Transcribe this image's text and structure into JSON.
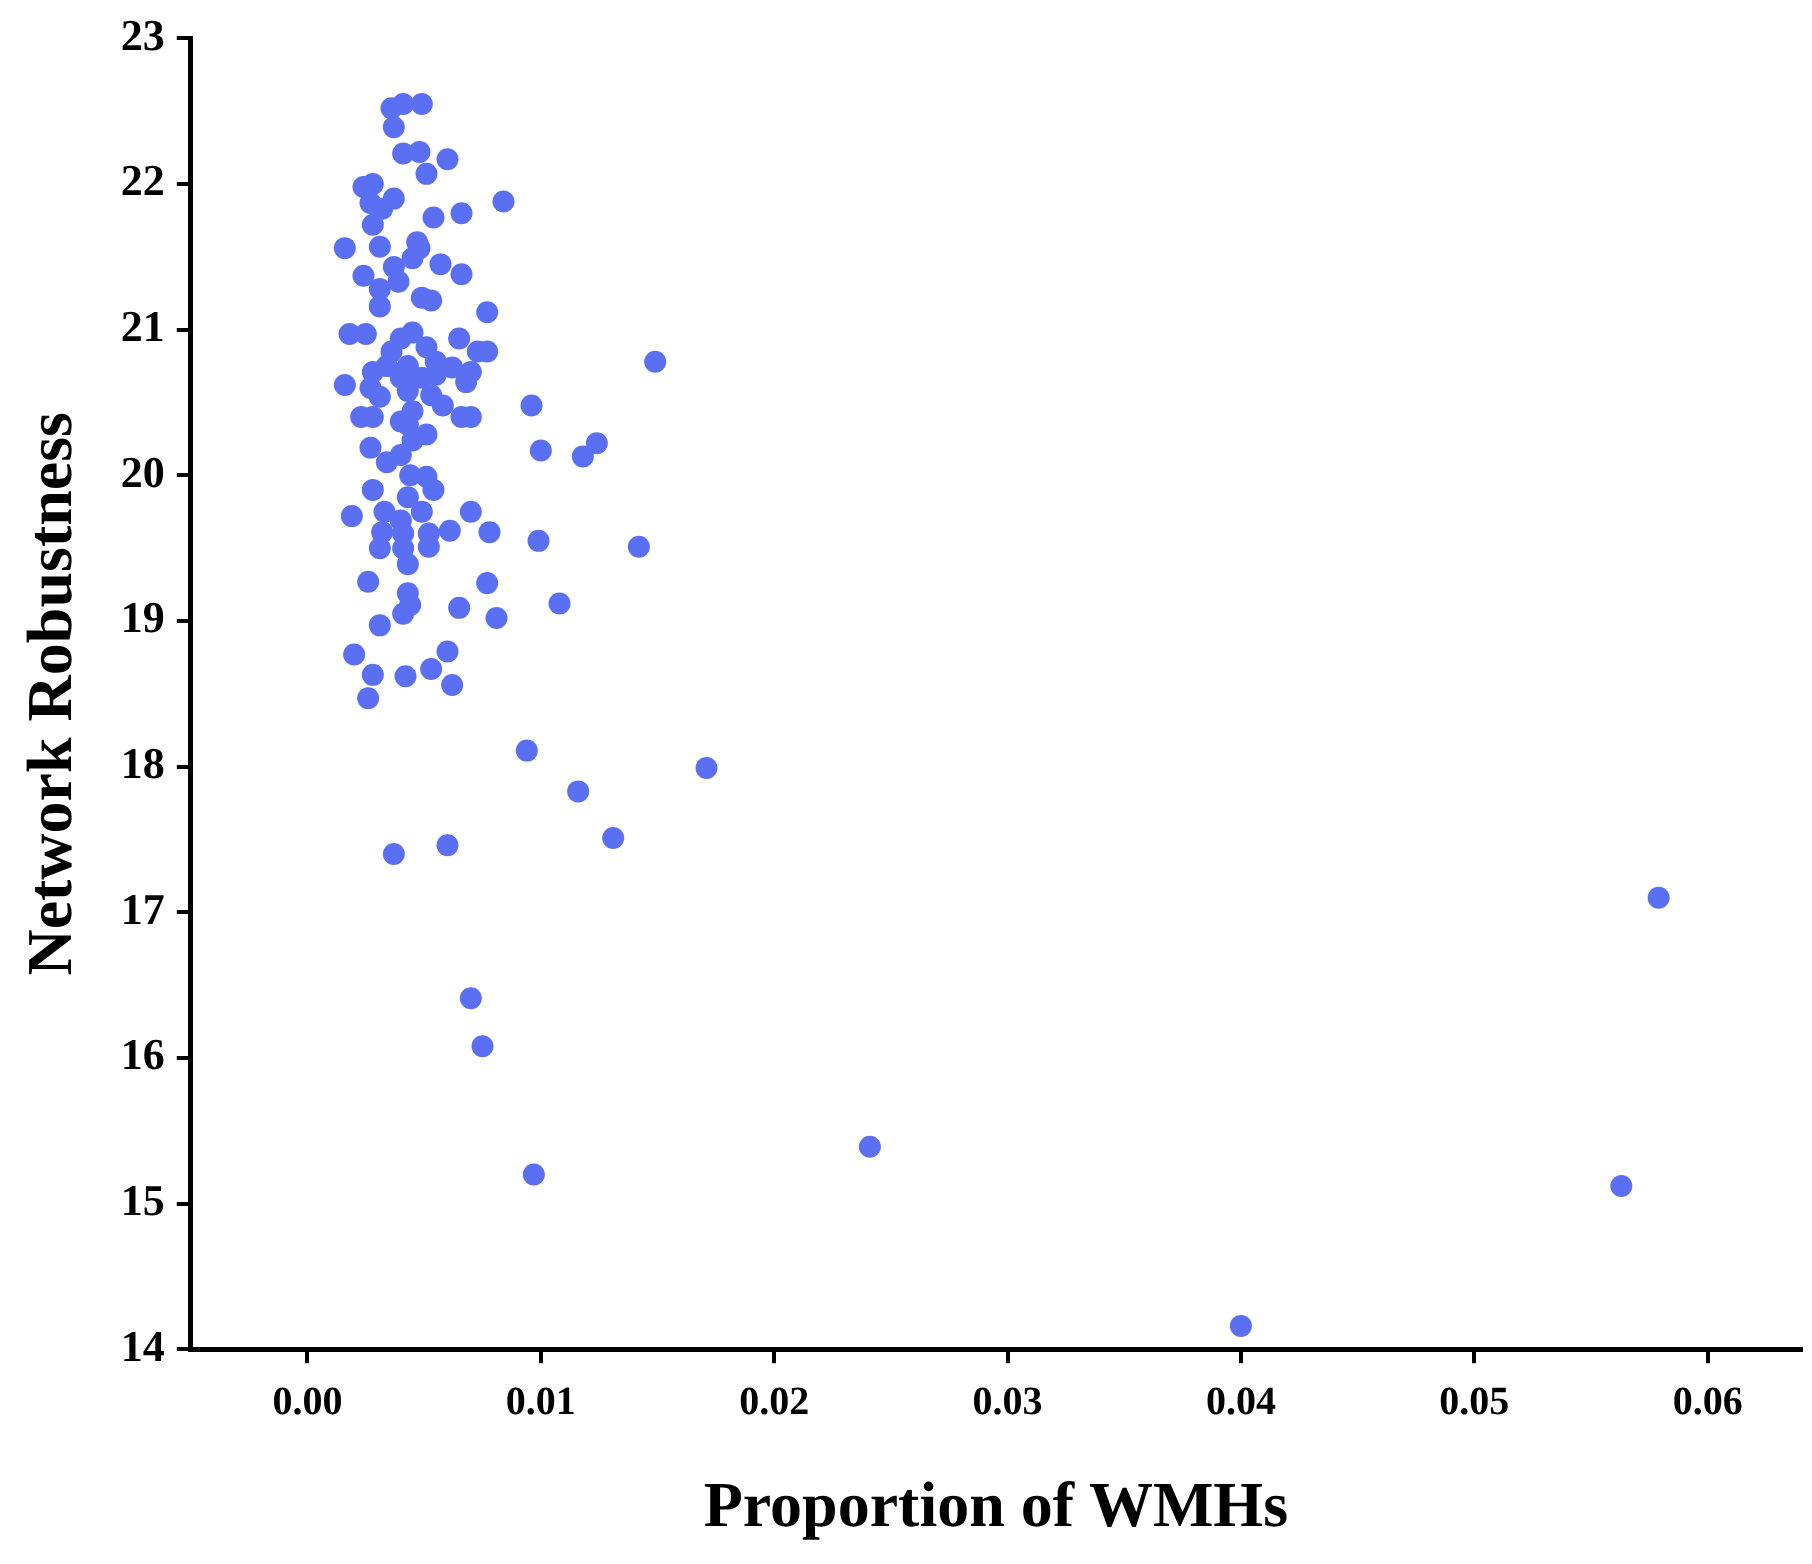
{
  "chart_data": {
    "type": "scatter",
    "xlabel": "Proportion of WMHs",
    "ylabel": "Network Robustness",
    "xlim": [
      -0.005,
      0.064
    ],
    "ylim": [
      14,
      23
    ],
    "xticks": [
      {
        "value": 0,
        "label": "0.00"
      },
      {
        "value": 0.01,
        "label": "0.01"
      },
      {
        "value": 0.02,
        "label": "0.02"
      },
      {
        "value": 0.03,
        "label": "0.03"
      },
      {
        "value": 0.04,
        "label": "0.04"
      },
      {
        "value": 0.05,
        "label": "0.05"
      },
      {
        "value": 0.06,
        "label": "0.06"
      }
    ],
    "yticks": [
      14,
      15,
      16,
      17,
      18,
      19,
      20,
      21,
      22,
      23
    ],
    "grid": false,
    "legend": false,
    "marker": "circle",
    "series": [
      {
        "color": "#5b6ff2",
        "x": [
          0.0097,
          0.0241,
          0.04,
          0.0563,
          0.0579,
          0.0171,
          0.0131,
          0.0116,
          0.0094,
          0.0037,
          0.006,
          0.007,
          0.0075,
          0.0149,
          0.0142,
          0.0124,
          0.0118,
          0.01,
          0.0096,
          0.0099,
          0.0108,
          0.0084,
          0.0036,
          0.0041,
          0.0049,
          0.0037,
          0.0041,
          0.0048,
          0.006,
          0.0051,
          0.0024,
          0.0028,
          0.0037,
          0.0027,
          0.0032,
          0.0054,
          0.0066,
          0.0028,
          0.0016,
          0.0031,
          0.0047,
          0.0048,
          0.0024,
          0.0037,
          0.0045,
          0.0057,
          0.0066,
          0.0039,
          0.0031,
          0.0031,
          0.0049,
          0.0053,
          0.0077,
          0.0018,
          0.0025,
          0.0065,
          0.004,
          0.0045,
          0.0073,
          0.0077,
          0.0036,
          0.0051,
          0.0034,
          0.0043,
          0.0055,
          0.007,
          0.0062,
          0.0028,
          0.004,
          0.0049,
          0.0016,
          0.0027,
          0.0068,
          0.0055,
          0.0043,
          0.0053,
          0.0031,
          0.0023,
          0.0028,
          0.0045,
          0.0058,
          0.0066,
          0.007,
          0.004,
          0.0043,
          0.0051,
          0.0027,
          0.0045,
          0.0034,
          0.004,
          0.0028,
          0.0043,
          0.0044,
          0.0051,
          0.0054,
          0.0019,
          0.0033,
          0.004,
          0.0049,
          0.007,
          0.0032,
          0.0041,
          0.0052,
          0.0061,
          0.0078,
          0.0031,
          0.0041,
          0.0052,
          0.0043,
          0.0026,
          0.0077,
          0.0043,
          0.0044,
          0.0041,
          0.0065,
          0.0081,
          0.0031,
          0.002,
          0.006,
          0.0028,
          0.0042,
          0.0053,
          0.0062,
          0.0026
        ],
        "values": [
          15.2,
          15.39,
          14.16,
          15.12,
          17.1,
          17.99,
          17.51,
          17.83,
          18.11,
          17.4,
          17.46,
          16.41,
          16.08,
          20.78,
          19.51,
          20.22,
          20.13,
          20.17,
          20.48,
          19.55,
          19.12,
          21.88,
          22.52,
          22.55,
          22.55,
          22.39,
          22.21,
          22.22,
          22.17,
          22.07,
          21.98,
          22.0,
          21.9,
          21.87,
          21.83,
          21.77,
          21.8,
          21.72,
          21.56,
          21.57,
          21.6,
          21.56,
          21.37,
          21.43,
          21.49,
          21.45,
          21.38,
          21.33,
          21.28,
          21.16,
          21.22,
          21.2,
          21.12,
          20.97,
          20.97,
          20.94,
          20.94,
          20.98,
          20.85,
          20.85,
          20.85,
          20.88,
          20.75,
          20.75,
          20.78,
          20.71,
          20.74,
          20.71,
          20.67,
          20.67,
          20.62,
          20.6,
          20.64,
          20.69,
          20.58,
          20.55,
          20.54,
          20.4,
          20.4,
          20.44,
          20.48,
          20.4,
          20.4,
          20.37,
          20.35,
          20.28,
          20.19,
          20.24,
          20.09,
          20.14,
          19.9,
          19.85,
          20.0,
          19.99,
          19.9,
          19.72,
          19.75,
          19.69,
          19.75,
          19.75,
          19.61,
          19.6,
          19.6,
          19.62,
          19.61,
          19.5,
          19.5,
          19.51,
          19.39,
          19.27,
          19.26,
          19.19,
          19.11,
          19.05,
          19.09,
          19.02,
          18.97,
          18.77,
          18.79,
          18.63,
          18.62,
          18.67,
          18.56,
          18.47
        ]
      }
    ]
  }
}
